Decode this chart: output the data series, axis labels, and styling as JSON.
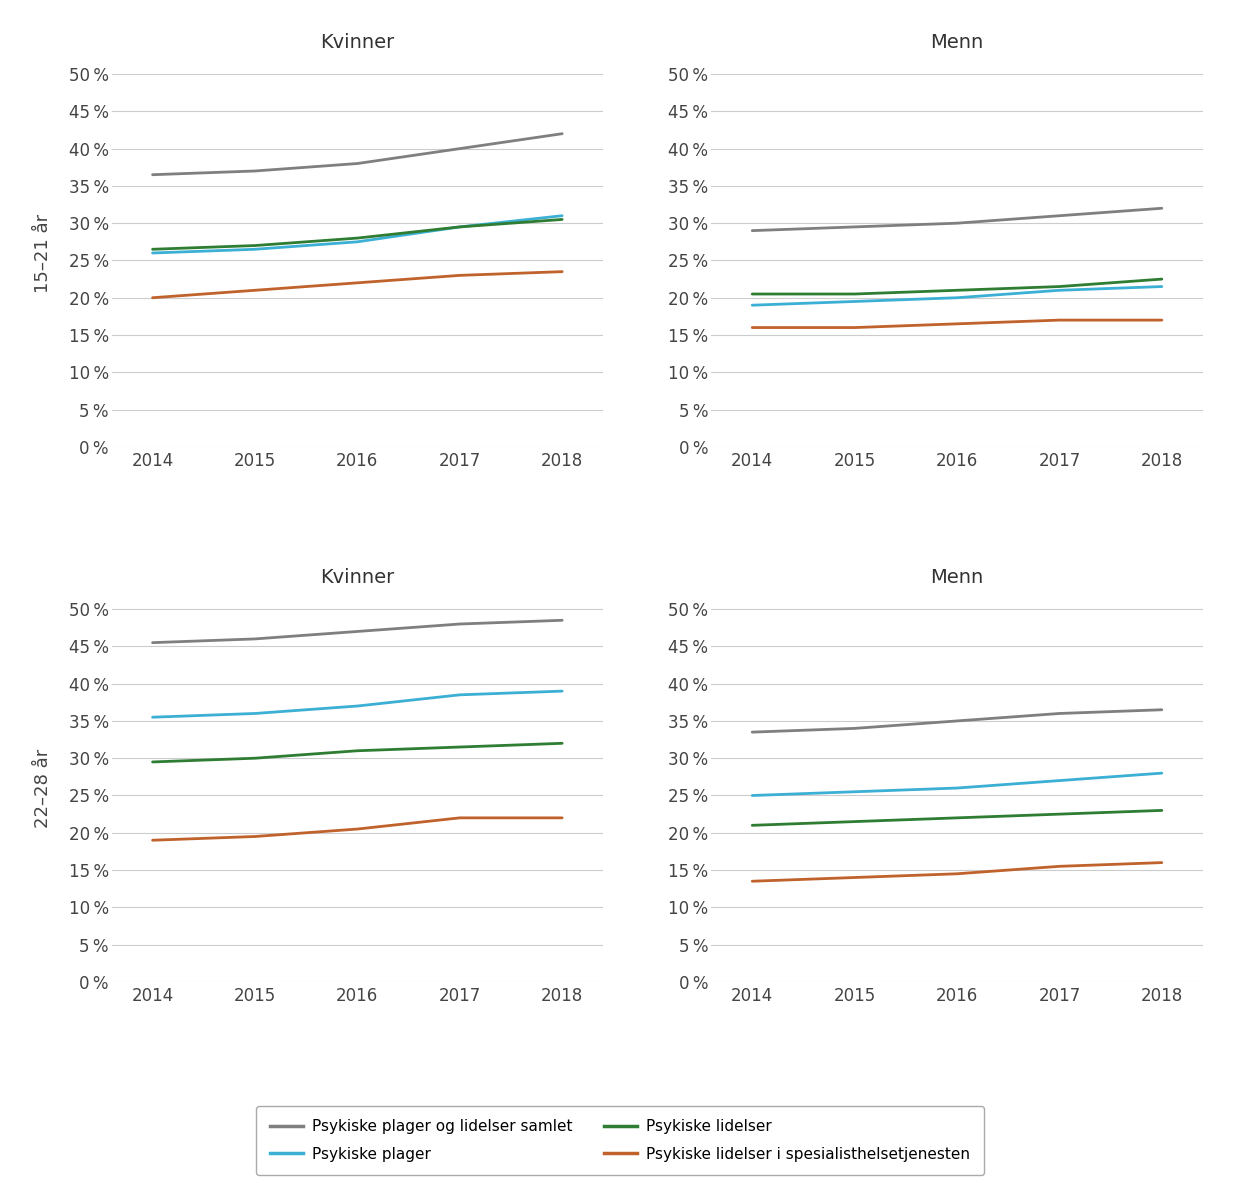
{
  "years": [
    2014,
    2015,
    2016,
    2017,
    2018
  ],
  "panels": {
    "top_left": {
      "title": "Kvinner",
      "row_ylabel": "15–21 år",
      "gray": [
        0.365,
        0.37,
        0.38,
        0.4,
        0.42
      ],
      "blue": [
        0.26,
        0.265,
        0.275,
        0.295,
        0.31
      ],
      "green": [
        0.265,
        0.27,
        0.28,
        0.295,
        0.305
      ],
      "orange": [
        0.2,
        0.21,
        0.22,
        0.23,
        0.235
      ]
    },
    "top_right": {
      "title": "Menn",
      "row_ylabel": "",
      "gray": [
        0.29,
        0.295,
        0.3,
        0.31,
        0.32
      ],
      "blue": [
        0.19,
        0.195,
        0.2,
        0.21,
        0.215
      ],
      "green": [
        0.205,
        0.205,
        0.21,
        0.215,
        0.225
      ],
      "orange": [
        0.16,
        0.16,
        0.165,
        0.17,
        0.17
      ]
    },
    "bot_left": {
      "title": "Kvinner",
      "row_ylabel": "22–28 år",
      "gray": [
        0.455,
        0.46,
        0.47,
        0.48,
        0.485
      ],
      "blue": [
        0.355,
        0.36,
        0.37,
        0.385,
        0.39
      ],
      "green": [
        0.295,
        0.3,
        0.31,
        0.315,
        0.32
      ],
      "orange": [
        0.19,
        0.195,
        0.205,
        0.22,
        0.22
      ]
    },
    "bot_right": {
      "title": "Menn",
      "row_ylabel": "",
      "gray": [
        0.335,
        0.34,
        0.35,
        0.36,
        0.365
      ],
      "blue": [
        0.25,
        0.255,
        0.26,
        0.27,
        0.28
      ],
      "green": [
        0.21,
        0.215,
        0.22,
        0.225,
        0.23
      ],
      "orange": [
        0.135,
        0.14,
        0.145,
        0.155,
        0.16
      ]
    }
  },
  "colors": {
    "gray": "#7f7f7f",
    "blue": "#3bafd4",
    "green": "#2e7d32",
    "orange": "#c0622c"
  },
  "legend_labels": {
    "gray": "Psykiske plager og lidelser samlet",
    "blue": "Psykiske plager",
    "green": "Psykiske lidelser",
    "orange": "Psykiske lidelser i spesialisthelsetjenesten"
  },
  "ylim": [
    0,
    0.52
  ],
  "yticks": [
    0.0,
    0.05,
    0.1,
    0.15,
    0.2,
    0.25,
    0.3,
    0.35,
    0.4,
    0.45,
    0.5
  ],
  "background_color": "#ffffff",
  "fig_background": "#ffffff",
  "linewidth": 2.0,
  "title_fontsize": 14,
  "ylabel_fontsize": 13,
  "tick_fontsize": 12,
  "legend_fontsize": 11
}
